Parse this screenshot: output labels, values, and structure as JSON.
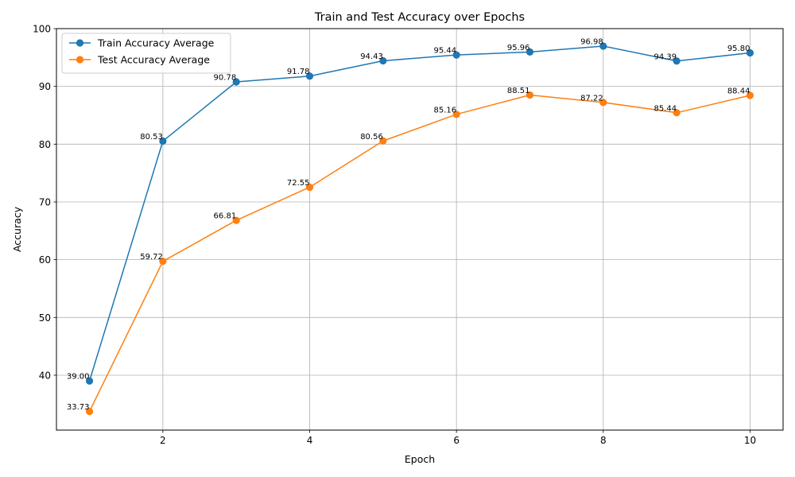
{
  "chart_data": {
    "type": "line",
    "title": "Train and Test Accuracy over Epochs",
    "xlabel": "Epoch",
    "ylabel": "Accuracy",
    "x": [
      1,
      2,
      3,
      4,
      5,
      6,
      7,
      8,
      9,
      10
    ],
    "xlim": [
      0.55,
      10.45
    ],
    "ylim": [
      30.5,
      100
    ],
    "xticks": [
      2,
      4,
      6,
      8,
      10
    ],
    "yticks": [
      40,
      50,
      60,
      70,
      80,
      90,
      100
    ],
    "grid": true,
    "legend_position": "top-left",
    "series": [
      {
        "name": "Train Accuracy Average",
        "color": "#1f77b4",
        "values": [
          39.0,
          80.53,
          90.78,
          91.78,
          94.43,
          95.44,
          95.96,
          96.98,
          94.39,
          95.8
        ],
        "labels": [
          "39.00",
          "80.53",
          "90.78",
          "91.78",
          "94.43",
          "95.44",
          "95.96",
          "96.98",
          "94.39",
          "95.80"
        ]
      },
      {
        "name": "Test Accuracy Average",
        "color": "#ff7f0e",
        "values": [
          33.73,
          59.72,
          66.81,
          72.55,
          80.56,
          85.16,
          88.51,
          87.22,
          85.44,
          88.44
        ],
        "labels": [
          "33.73",
          "59.72",
          "66.81",
          "72.55",
          "80.56",
          "85.16",
          "88.51",
          "87.22",
          "85.44",
          "88.44"
        ]
      }
    ]
  }
}
